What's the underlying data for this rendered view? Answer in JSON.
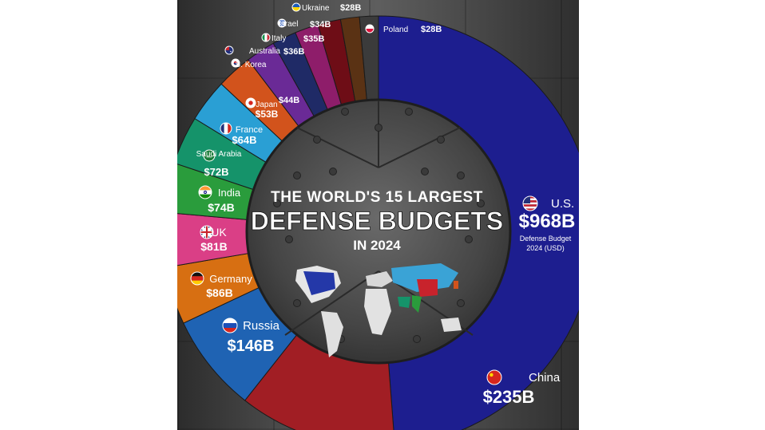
{
  "chart_data": {
    "type": "pie",
    "title_line1": "THE WORLD'S 15 LARGEST",
    "title_line2": "DEFENSE BUDGETS",
    "title_line3": "IN 2024",
    "slices": [
      {
        "label": "U.S.",
        "value_label": "$968B",
        "value": 968,
        "color": "#1d1e8f",
        "flag": "us-flag-icon"
      },
      {
        "label": "China",
        "value_label": "$235B",
        "value": 235,
        "color": "#a11e24",
        "flag": "china-flag-icon"
      },
      {
        "label": "Russia",
        "value_label": "$146B",
        "value": 146,
        "color": "#1f63b3",
        "flag": "russia-flag-icon"
      },
      {
        "label": "Germany",
        "value_label": "$86B",
        "value": 86,
        "color": "#d76f12",
        "flag": "germany-flag-icon"
      },
      {
        "label": "UK",
        "value_label": "$81B",
        "value": 81,
        "color": "#da3f86",
        "flag": "uk-flag-icon"
      },
      {
        "label": "India",
        "value_label": "$74B",
        "value": 74,
        "color": "#2a9c3c",
        "flag": "india-flag-icon"
      },
      {
        "label": "Saudi Arabia",
        "value_label": "$72B",
        "value": 72,
        "color": "#15936a",
        "flag": "saudi-flag-icon"
      },
      {
        "label": "France",
        "value_label": "$64B",
        "value": 64,
        "color": "#2a9fd4",
        "flag": "france-flag-icon"
      },
      {
        "label": "Japan",
        "value_label": "$53B",
        "value": 53,
        "color": "#d2531c",
        "flag": "japan-flag-icon"
      },
      {
        "label": "S. Korea",
        "value_label": "$44B",
        "value": 44,
        "color": "#6a2a96",
        "flag": "korea-flag-icon"
      },
      {
        "label": "Australia",
        "value_label": "$36B",
        "value": 36,
        "color": "#1f2a66",
        "flag": "australia-flag-icon"
      },
      {
        "label": "Italy",
        "value_label": "$35B",
        "value": 35,
        "color": "#8e1d6a",
        "flag": "italy-flag-icon"
      },
      {
        "label": "Israel",
        "value_label": "$34B",
        "value": 34,
        "color": "#6e0d16",
        "flag": "israel-flag-icon"
      },
      {
        "label": "Ukraine",
        "value_label": "$28B",
        "value": 28,
        "color": "#5a3214",
        "flag": "ukraine-flag-icon"
      },
      {
        "label": "Poland",
        "value_label": "$28B",
        "value": 28,
        "color": "#3b3b3b",
        "flag": "poland-flag-icon"
      }
    ],
    "us_note_line1": "Defense Budget",
    "us_note_line2": "2024 (USD)"
  }
}
